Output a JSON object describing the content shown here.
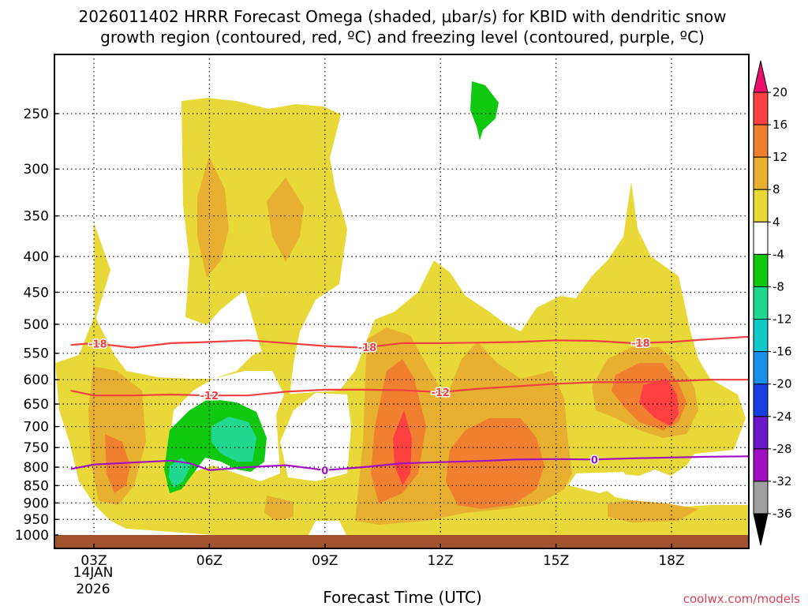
{
  "chart_data": {
    "type": "contour",
    "title_lines": [
      "2026011402 HRRR Forecast Omega (shaded, μbar/s) for KBID with dendritic snow",
      "growth region (contoured, red, ºC) and freezing level (contoured, purple, ºC)"
    ],
    "xlabel": "Forecast Time (UTC)",
    "x_ticks": [
      "03Z",
      "06Z",
      "09Z",
      "12Z",
      "15Z",
      "18Z"
    ],
    "x_tick_hours": [
      3,
      6,
      9,
      12,
      15,
      18
    ],
    "x_range_hours": [
      2.4,
      20.0
    ],
    "date_label": [
      "14JAN",
      "2026"
    ],
    "y_ticks": [
      250,
      300,
      350,
      400,
      450,
      500,
      550,
      600,
      650,
      700,
      750,
      800,
      850,
      900,
      950,
      1000
    ],
    "y_range_hpa": [
      200,
      1010
    ],
    "colorbar": {
      "labels": [
        "20",
        "16",
        "12",
        "8",
        "4",
        "-4",
        "-8",
        "-12",
        "-16",
        "-20",
        "-24",
        "-28",
        "-32",
        "-36"
      ],
      "colors": [
        "#ff4040",
        "#f08030",
        "#e8b030",
        "#e8d838",
        "#ffffff",
        "#10c810",
        "#20d890",
        "#10c8c8",
        "#1890e8",
        "#1840e0",
        "#6818c8",
        "#a010c0",
        "#a0a0a0"
      ],
      "top_arrow_color": "#e8106a",
      "bottom_arrow_color": "#000000"
    },
    "contours": [
      {
        "name": "dendritic growth -18",
        "value": -18,
        "label": "-18",
        "color": "#f04040",
        "points": [
          [
            2.4,
            535
          ],
          [
            3.0,
            532
          ],
          [
            4.0,
            540
          ],
          [
            5.0,
            532
          ],
          [
            6.0,
            530
          ],
          [
            7.0,
            527
          ],
          [
            8.0,
            532
          ],
          [
            9.0,
            537
          ],
          [
            10.0,
            540
          ],
          [
            11.0,
            532
          ],
          [
            12.0,
            532
          ],
          [
            13.0,
            531
          ],
          [
            14.0,
            530
          ],
          [
            15.0,
            527
          ],
          [
            16.0,
            528
          ],
          [
            17.0,
            532
          ],
          [
            18.0,
            530
          ],
          [
            19.0,
            525
          ],
          [
            20.0,
            521
          ]
        ],
        "label_hours": [
          3.1,
          10.1,
          17.2
        ]
      },
      {
        "name": "dendritic growth -12",
        "value": -12,
        "label": "-12",
        "color": "#f04040",
        "points": [
          [
            2.4,
            622
          ],
          [
            3.0,
            632
          ],
          [
            4.0,
            632
          ],
          [
            5.0,
            630
          ],
          [
            6.0,
            632
          ],
          [
            7.0,
            632
          ],
          [
            8.0,
            624
          ],
          [
            9.0,
            620
          ],
          [
            10.0,
            620
          ],
          [
            11.0,
            621
          ],
          [
            12.0,
            625
          ],
          [
            13.0,
            618
          ],
          [
            14.0,
            613
          ],
          [
            15.0,
            608
          ],
          [
            16.0,
            605
          ],
          [
            17.0,
            605
          ],
          [
            18.0,
            603
          ],
          [
            19.0,
            600
          ],
          [
            20.0,
            600
          ]
        ],
        "label_hours": [
          6.0,
          12.0
        ]
      },
      {
        "name": "freezing level 0",
        "value": 0,
        "label": "0",
        "color": "#a010c0",
        "points": [
          [
            2.4,
            805
          ],
          [
            3.0,
            793
          ],
          [
            4.0,
            788
          ],
          [
            5.0,
            783
          ],
          [
            5.5,
            790
          ],
          [
            6.0,
            808
          ],
          [
            7.0,
            800
          ],
          [
            8.0,
            795
          ],
          [
            9.0,
            808
          ],
          [
            10.0,
            800
          ],
          [
            11.0,
            790
          ],
          [
            12.0,
            787
          ],
          [
            13.0,
            784
          ],
          [
            14.0,
            780
          ],
          [
            15.0,
            779
          ],
          [
            16.0,
            780
          ],
          [
            17.0,
            777
          ],
          [
            18.0,
            775
          ],
          [
            19.0,
            773
          ],
          [
            20.0,
            772
          ]
        ],
        "label_hours": [
          9.0,
          16.0
        ]
      }
    ],
    "surface_fill_color": "#a0522d"
  },
  "footer": {
    "credit": "coolwx.com/models"
  }
}
